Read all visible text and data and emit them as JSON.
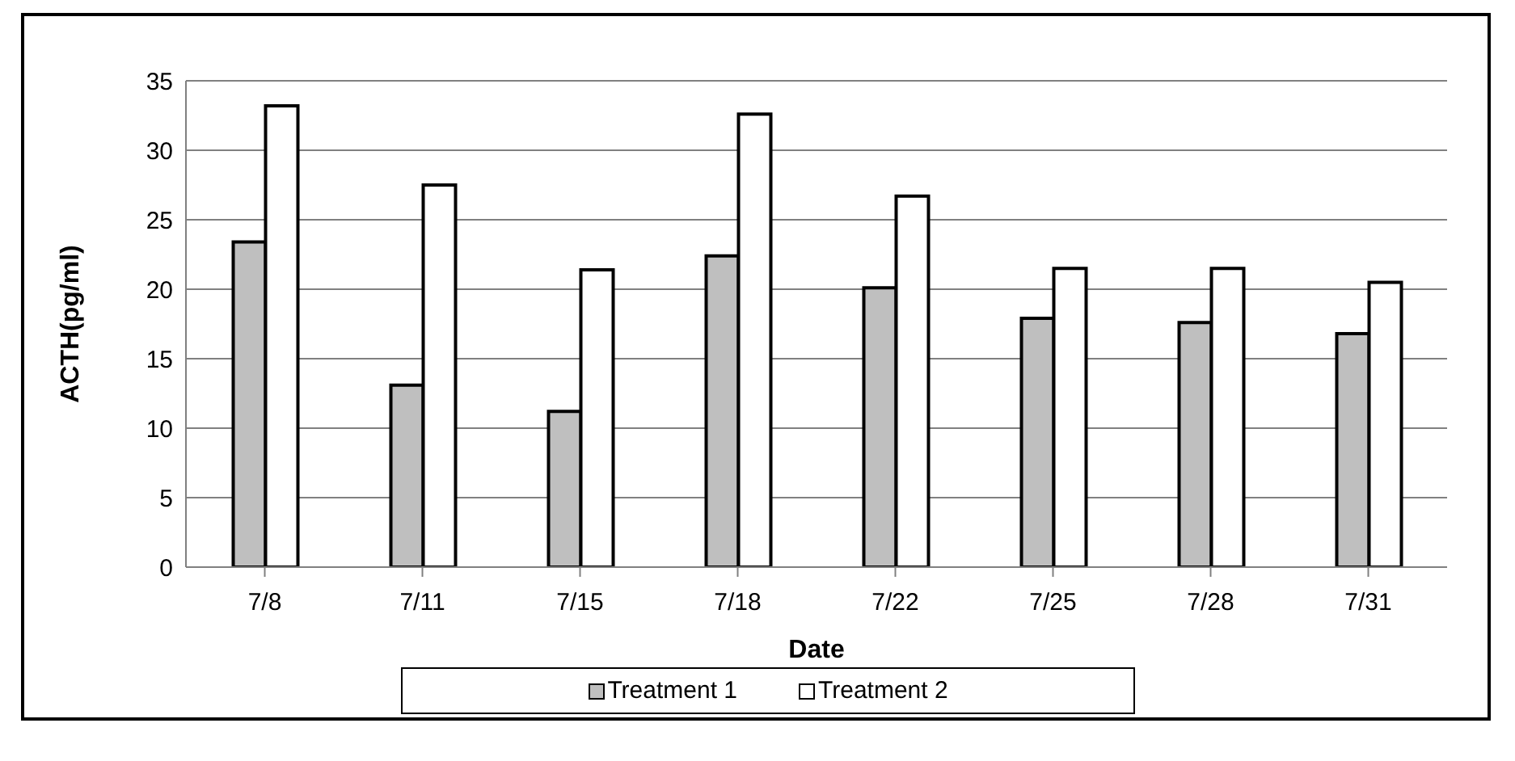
{
  "chart_data": {
    "type": "bar",
    "xlabel": "Date",
    "ylabel": "ACTH(pg/ml)",
    "categories": [
      "7/8",
      "7/11",
      "7/15",
      "7/18",
      "7/22",
      "7/25",
      "7/28",
      "7/31"
    ],
    "series": [
      {
        "name": "Treatment 1",
        "color": "#bfbfbf",
        "values": [
          23.4,
          13.1,
          11.2,
          22.4,
          20.1,
          17.9,
          17.6,
          16.8
        ]
      },
      {
        "name": "Treatment 2",
        "color": "#ffffff",
        "values": [
          33.2,
          27.5,
          21.4,
          32.6,
          26.7,
          21.5,
          21.5,
          20.5
        ]
      }
    ],
    "ylim": [
      0,
      35
    ],
    "yticks": [
      0,
      5,
      10,
      15,
      20,
      25,
      30,
      35
    ],
    "grid": "y",
    "legend": "bottom"
  }
}
